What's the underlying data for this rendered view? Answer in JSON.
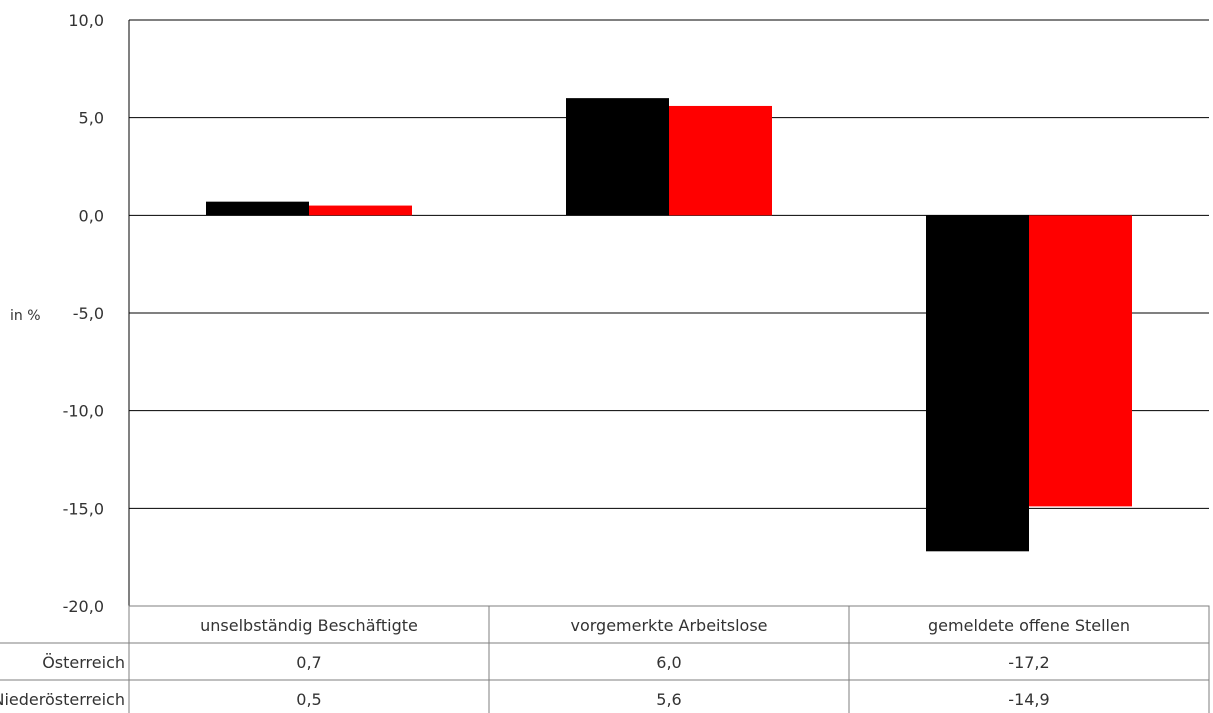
{
  "chart_data": {
    "type": "bar",
    "ylabel": "in %",
    "ylim": [
      -20,
      10
    ],
    "y_ticks": [
      "10,0",
      "5,0",
      "0,0",
      "-5,0",
      "-10,0",
      "-15,0",
      "-20,0"
    ],
    "grid": true,
    "categories": [
      "unselbständig Beschäftigte",
      "vorgemerkte Arbeitslose",
      "gemeldete offene Stellen"
    ],
    "series": [
      {
        "name": "Österreich",
        "color": "#000000",
        "values": [
          0.7,
          6.0,
          -17.2
        ],
        "labels": [
          "0,7",
          "6,0",
          "-17,2"
        ]
      },
      {
        "name": "Niederösterreich",
        "color": "#ff0000",
        "values": [
          0.5,
          5.6,
          -14.9
        ],
        "labels": [
          "0,5",
          "5,6",
          "-14,9"
        ]
      }
    ]
  }
}
